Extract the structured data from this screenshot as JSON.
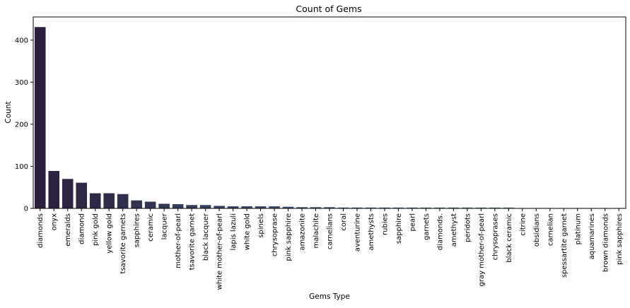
{
  "chart_data": {
    "type": "bar",
    "title": "Count of Gems",
    "xlabel": "Gems Type",
    "ylabel": "Count",
    "ylim": [
      0,
      455
    ],
    "yticks": [
      0,
      100,
      200,
      300,
      400
    ],
    "grid": false,
    "legend": "none",
    "categories": [
      "diamonds",
      "onyx",
      "emeralds",
      "diamond",
      "pink gold",
      "yellow gold",
      "tsavorite garnets",
      "sapphires",
      "ceramic",
      "lacquer",
      "mother-of-pearl",
      "tsavorite garnet",
      "black lacquer",
      "white mother-of-pearl",
      "lapis lazuli",
      "white gold",
      "spinels",
      "chrysoprase",
      "pink sapphire",
      "amazonite",
      "malachite",
      "carnelians",
      "coral",
      "aventurine",
      "amethysts",
      "rubies",
      "sapphire",
      "pearl",
      "garnets",
      "diamonds.",
      "amethyst",
      "peridots",
      "gray mother-of-pearl",
      "chrysoprases",
      "black ceramic",
      "citrine",
      "obsidians",
      "carnelian",
      "spessartite garnet",
      "platinum",
      "aquamarines",
      "brown diamonds",
      "pink sapphires"
    ],
    "values": [
      431,
      89,
      70,
      61,
      36,
      36,
      34,
      19,
      16,
      11,
      10,
      8,
      8,
      6,
      5,
      5,
      5,
      5,
      4,
      3,
      3,
      3,
      2,
      2,
      2,
      2,
      2,
      2,
      2,
      2,
      2,
      2,
      2,
      2,
      2,
      1,
      1,
      1,
      1,
      1,
      1,
      1,
      1
    ],
    "palette_start": "#2c1e3e",
    "palette_mid": "#3e5a78",
    "palette_end": "#6f9a84"
  }
}
